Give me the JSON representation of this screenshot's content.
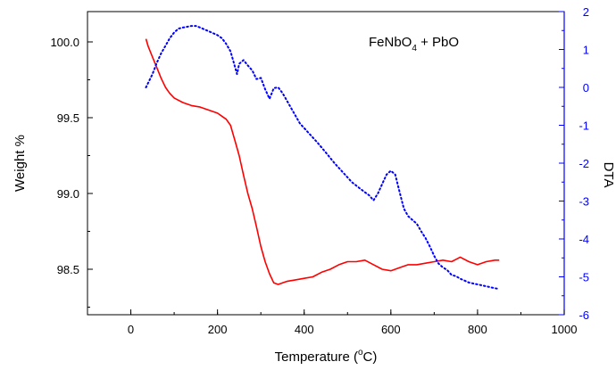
{
  "chart_data": {
    "type": "line",
    "title": "",
    "annotation": {
      "formula_base": "FeNbO",
      "formula_sub": "4",
      "formula_rest": " + PbO"
    },
    "xlabel_prefix": "Temperature (",
    "xlabel_degree": "o",
    "xlabel_suffix": "C)",
    "ylabel": "Weight %",
    "y2label": "DTA",
    "xlim": [
      -100,
      1000
    ],
    "ylim": [
      98.2,
      100.2
    ],
    "y2lim": [
      -6,
      2
    ],
    "xticks": [
      "0",
      "200",
      "400",
      "600",
      "800",
      "1000"
    ],
    "yticks": [
      "98.5",
      "99.0",
      "99.5",
      "100.0"
    ],
    "y2ticks": [
      "-6",
      "-5",
      "-4",
      "-3",
      "-2",
      "-1",
      "0",
      "1",
      "2"
    ],
    "grid": false,
    "colors": {
      "weight": "#ff0000",
      "dta": "#0000ff"
    },
    "series": [
      {
        "axis": "left",
        "style": "solid",
        "x": [
          35,
          40,
          50,
          60,
          70,
          80,
          90,
          100,
          120,
          140,
          160,
          180,
          200,
          210,
          220,
          230,
          240,
          250,
          260,
          270,
          280,
          290,
          300,
          310,
          320,
          330,
          340,
          350,
          360,
          380,
          400,
          420,
          440,
          460,
          480,
          500,
          520,
          540,
          560,
          580,
          600,
          620,
          640,
          660,
          680,
          700,
          720,
          740,
          760,
          780,
          800,
          820,
          840,
          850
        ],
        "values": [
          100.02,
          99.97,
          99.9,
          99.83,
          99.76,
          99.7,
          99.66,
          99.63,
          99.6,
          99.58,
          99.57,
          99.55,
          99.53,
          99.51,
          99.49,
          99.45,
          99.35,
          99.25,
          99.12,
          99.0,
          98.9,
          98.78,
          98.65,
          98.55,
          98.47,
          98.41,
          98.4,
          98.41,
          98.42,
          98.43,
          98.44,
          98.45,
          98.48,
          98.5,
          98.53,
          98.55,
          98.55,
          98.56,
          98.53,
          98.5,
          98.49,
          98.51,
          98.53,
          98.53,
          98.54,
          98.55,
          98.56,
          98.55,
          98.58,
          98.55,
          98.53,
          98.55,
          98.56,
          98.56
        ]
      },
      {
        "axis": "right",
        "style": "dotted",
        "x": [
          35,
          50,
          60,
          70,
          80,
          90,
          100,
          110,
          120,
          130,
          140,
          150,
          160,
          180,
          200,
          210,
          220,
          230,
          240,
          245,
          250,
          260,
          270,
          280,
          290,
          300,
          310,
          320,
          330,
          340,
          350,
          370,
          390,
          410,
          430,
          450,
          470,
          490,
          510,
          530,
          550,
          560,
          570,
          580,
          590,
          600,
          610,
          620,
          630,
          640,
          650,
          660,
          670,
          680,
          690,
          700,
          710,
          720,
          730,
          740,
          750,
          760,
          780,
          800,
          820,
          840,
          850
        ],
        "values": [
          0.0,
          0.35,
          0.65,
          0.9,
          1.1,
          1.3,
          1.45,
          1.55,
          1.58,
          1.6,
          1.62,
          1.62,
          1.58,
          1.48,
          1.38,
          1.3,
          1.15,
          0.95,
          0.55,
          0.35,
          0.62,
          0.72,
          0.58,
          0.45,
          0.22,
          0.25,
          -0.05,
          -0.3,
          -0.02,
          0.0,
          -0.15,
          -0.55,
          -0.95,
          -1.2,
          -1.45,
          -1.72,
          -2.0,
          -2.25,
          -2.5,
          -2.68,
          -2.85,
          -2.98,
          -2.8,
          -2.55,
          -2.3,
          -2.2,
          -2.3,
          -2.75,
          -3.2,
          -3.4,
          -3.5,
          -3.6,
          -3.8,
          -3.98,
          -4.2,
          -4.45,
          -4.65,
          -4.75,
          -4.82,
          -4.95,
          -4.98,
          -5.05,
          -5.15,
          -5.2,
          -5.25,
          -5.3,
          -5.32
        ]
      }
    ]
  }
}
